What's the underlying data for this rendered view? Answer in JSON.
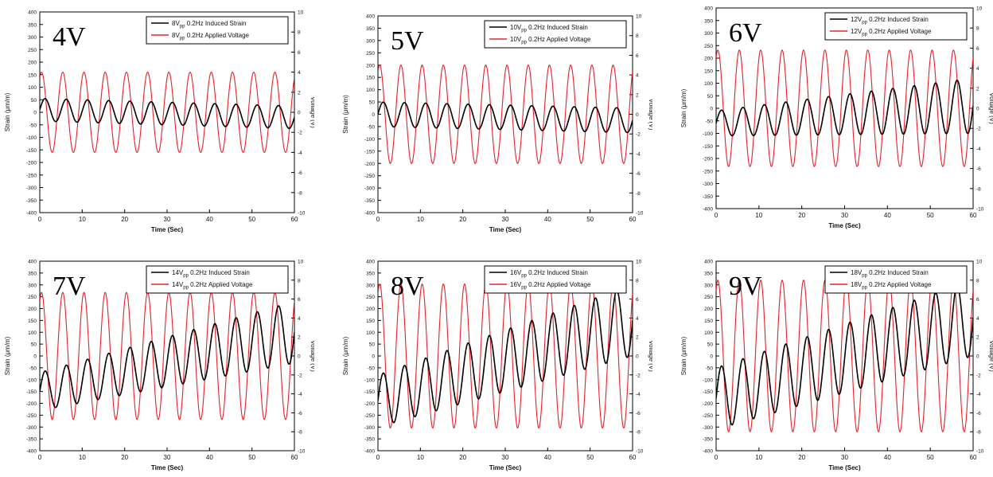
{
  "colors": {
    "strain": "#000000",
    "voltage": "#e8202a",
    "axis": "#000000"
  },
  "chart_data": [
    {
      "type": "line",
      "panel_label": "4V",
      "xlabel": "Time (Sec)",
      "ylabel": "Strain (μm/m)",
      "y2label": "Voltage (V)",
      "xlim": [
        0,
        60
      ],
      "ylim": [
        -400,
        400
      ],
      "y2lim": [
        -10,
        10
      ],
      "xticks": [
        0,
        10,
        20,
        30,
        40,
        50,
        60
      ],
      "yticks": [
        -400,
        -350,
        -300,
        -250,
        -200,
        -150,
        -100,
        -50,
        0,
        50,
        100,
        150,
        200,
        250,
        300,
        350,
        400
      ],
      "y2ticks": [
        -10,
        -8,
        -6,
        -4,
        -2,
        0,
        2,
        4,
        6,
        8,
        10
      ],
      "legend_position": "top-right",
      "legend": [
        {
          "pre": "8V",
          "sub": "pp",
          "post": " 0.2Hz Induced Strain"
        },
        {
          "pre": "8V",
          "sub": "pp",
          "post": " 0.2Hz Applied Voltage"
        }
      ],
      "series": [
        {
          "name": "8Vpp 0.2Hz Induced Strain",
          "axis": "left",
          "kind": "sine",
          "frequency_hz": 0.2,
          "amplitude": 45,
          "offset_start": 10,
          "offset_end": -20,
          "phase_deg": 0
        },
        {
          "name": "8Vpp 0.2Hz Applied Voltage",
          "axis": "right",
          "kind": "sine",
          "frequency_hz": 0.2,
          "amplitude": 4,
          "offset": 0,
          "phase_deg": 60
        }
      ]
    },
    {
      "type": "line",
      "panel_label": "5V",
      "xlabel": "Time (Sec)",
      "ylabel": "Strain (μm/m)",
      "y2label": "Voltage (V)",
      "xlim": [
        0,
        60
      ],
      "ylim": [
        -400,
        400
      ],
      "y2lim": [
        -10,
        10
      ],
      "xticks": [
        0,
        10,
        20,
        30,
        40,
        50,
        60
      ],
      "yticks": [
        -400,
        -350,
        -300,
        -250,
        -200,
        -150,
        -100,
        -50,
        0,
        50,
        100,
        150,
        200,
        250,
        300,
        350,
        400
      ],
      "y2ticks": [
        -10,
        -8,
        -6,
        -4,
        -2,
        0,
        2,
        4,
        6,
        8,
        10
      ],
      "legend_position": "top-right",
      "legend": [
        {
          "pre": "10V",
          "sub": "pp",
          "post": " 0.2Hz Induced Strain"
        },
        {
          "pre": "10V",
          "sub": "pp",
          "post": " 0.2Hz Applied Voltage"
        }
      ],
      "series": [
        {
          "name": "10Vpp 0.2Hz Induced Strain",
          "axis": "left",
          "kind": "sine",
          "frequency_hz": 0.2,
          "amplitude": 50,
          "offset_start": 0,
          "offset_end": -25,
          "phase_deg": 0
        },
        {
          "name": "10Vpp 0.2Hz Applied Voltage",
          "axis": "right",
          "kind": "sine",
          "frequency_hz": 0.2,
          "amplitude": 5,
          "offset": 0,
          "phase_deg": 60
        }
      ]
    },
    {
      "type": "line",
      "panel_label": "6V",
      "xlabel": "Time (Sec)",
      "ylabel": "Strain (μm/m)",
      "y2label": "Voltage (V)",
      "xlim": [
        0,
        60
      ],
      "ylim": [
        -400,
        400
      ],
      "y2lim": [
        -10,
        10
      ],
      "xticks": [
        0,
        10,
        20,
        30,
        40,
        50,
        60
      ],
      "yticks": [
        -400,
        -350,
        -300,
        -250,
        -200,
        -150,
        -100,
        -50,
        0,
        50,
        100,
        150,
        200,
        250,
        300,
        350,
        400
      ],
      "y2ticks": [
        -10,
        -8,
        -6,
        -4,
        -2,
        0,
        2,
        4,
        6,
        8,
        10
      ],
      "legend_position": "top-right",
      "legend": [
        {
          "pre": "12V",
          "sub": "pp",
          "post": " 0.2Hz Induced Strain"
        },
        {
          "pre": "12V",
          "sub": "pp",
          "post": " 0.2Hz Applied Voltage"
        }
      ],
      "series": [
        {
          "name": "12Vpp 0.2Hz Induced Strain",
          "axis": "left",
          "kind": "sine",
          "frequency_hz": 0.2,
          "amplitude_start": 50,
          "amplitude_end": 110,
          "offset_start": -60,
          "offset_end": 10,
          "phase_deg": 0
        },
        {
          "name": "12Vpp 0.2Hz Applied Voltage",
          "axis": "right",
          "kind": "sine",
          "frequency_hz": 0.2,
          "amplitude": 5.8,
          "offset": 0,
          "phase_deg": 60
        }
      ]
    },
    {
      "type": "line",
      "panel_label": "7V",
      "xlabel": "Time (Sec)",
      "ylabel": "Strain (μm/m)",
      "y2label": "Voltage (V)",
      "xlim": [
        0,
        60
      ],
      "ylim": [
        -400,
        400
      ],
      "y2lim": [
        -10,
        10
      ],
      "xticks": [
        0,
        10,
        20,
        30,
        40,
        50,
        60
      ],
      "yticks": [
        -400,
        -350,
        -300,
        -250,
        -200,
        -150,
        -100,
        -50,
        0,
        50,
        100,
        150,
        200,
        250,
        300,
        350,
        400
      ],
      "y2ticks": [
        -10,
        -8,
        -6,
        -4,
        -2,
        0,
        2,
        4,
        6,
        8,
        10
      ],
      "legend_position": "top-right",
      "legend": [
        {
          "pre": "14V",
          "sub": "pp",
          "post": " 0.2Hz Induced Strain"
        },
        {
          "pre": "14V",
          "sub": "pp",
          "post": " 0.2Hz Applied Voltage"
        }
      ],
      "series": [
        {
          "name": "14Vpp 0.2Hz Induced Strain",
          "axis": "left",
          "kind": "sine",
          "frequency_hz": 0.2,
          "amplitude_start": 80,
          "amplitude_end": 130,
          "offset_start": -150,
          "offset_end": 100,
          "phase_deg": 0
        },
        {
          "name": "14Vpp 0.2Hz Applied Voltage",
          "axis": "right",
          "kind": "sine",
          "frequency_hz": 0.2,
          "amplitude": 6.7,
          "offset": 0,
          "phase_deg": 60
        }
      ]
    },
    {
      "type": "line",
      "panel_label": "8V",
      "xlabel": "Time (Sec)",
      "ylabel": "Strain (μm/m)",
      "y2label": "Voltage (V)",
      "xlim": [
        0,
        60
      ],
      "ylim": [
        -400,
        400
      ],
      "y2lim": [
        -10,
        10
      ],
      "xticks": [
        0,
        10,
        20,
        30,
        40,
        50,
        60
      ],
      "yticks": [
        -400,
        -350,
        -300,
        -250,
        -200,
        -150,
        -100,
        -50,
        0,
        50,
        100,
        150,
        200,
        250,
        300,
        350,
        400
      ],
      "y2ticks": [
        -10,
        -8,
        -6,
        -4,
        -2,
        0,
        2,
        4,
        6,
        8,
        10
      ],
      "legend_position": "top-right",
      "legend": [
        {
          "pre": "16V",
          "sub": "pp",
          "post": " 0.2Hz Induced Strain"
        },
        {
          "pre": "16V",
          "sub": "pp",
          "post": " 0.2Hz Applied Voltage"
        }
      ],
      "series": [
        {
          "name": "16Vpp 0.2Hz Induced Strain",
          "axis": "left",
          "kind": "sine",
          "frequency_hz": 0.2,
          "amplitude_start": 110,
          "amplitude_end": 150,
          "offset_start": -190,
          "offset_end": 150,
          "phase_deg": 0
        },
        {
          "name": "16Vpp 0.2Hz Applied Voltage",
          "axis": "right",
          "kind": "sine",
          "frequency_hz": 0.2,
          "amplitude": 7.6,
          "offset": 0,
          "phase_deg": 60
        }
      ]
    },
    {
      "type": "line",
      "panel_label": "9V",
      "xlabel": "Time (Sec)",
      "ylabel": "Strain (μm/m)",
      "y2label": "Voltage (V)",
      "xlim": [
        0,
        60
      ],
      "ylim": [
        -400,
        400
      ],
      "y2lim": [
        -10,
        10
      ],
      "xticks": [
        0,
        10,
        20,
        30,
        40,
        50,
        60
      ],
      "yticks": [
        -400,
        -350,
        -300,
        -250,
        -200,
        -150,
        -100,
        -50,
        0,
        50,
        100,
        150,
        200,
        250,
        300,
        350,
        400
      ],
      "y2ticks": [
        -10,
        -8,
        -6,
        -4,
        -2,
        0,
        2,
        4,
        6,
        8,
        10
      ],
      "legend_position": "top-right",
      "legend": [
        {
          "pre": "18V",
          "sub": "pp",
          "post": " 0.2Hz Induced Strain"
        },
        {
          "pre": "18V",
          "sub": "pp",
          "post": " 0.2Hz Applied Voltage"
        }
      ],
      "series": [
        {
          "name": "18Vpp 0.2Hz Induced Strain",
          "axis": "left",
          "kind": "sine",
          "frequency_hz": 0.2,
          "amplitude_start": 130,
          "amplitude_end": 160,
          "offset_start": -180,
          "offset_end": 160,
          "phase_deg": 0
        },
        {
          "name": "18Vpp 0.2Hz Applied Voltage",
          "axis": "right",
          "kind": "sine",
          "frequency_hz": 0.2,
          "amplitude": 8,
          "offset": 0,
          "phase_deg": 60
        }
      ]
    }
  ]
}
